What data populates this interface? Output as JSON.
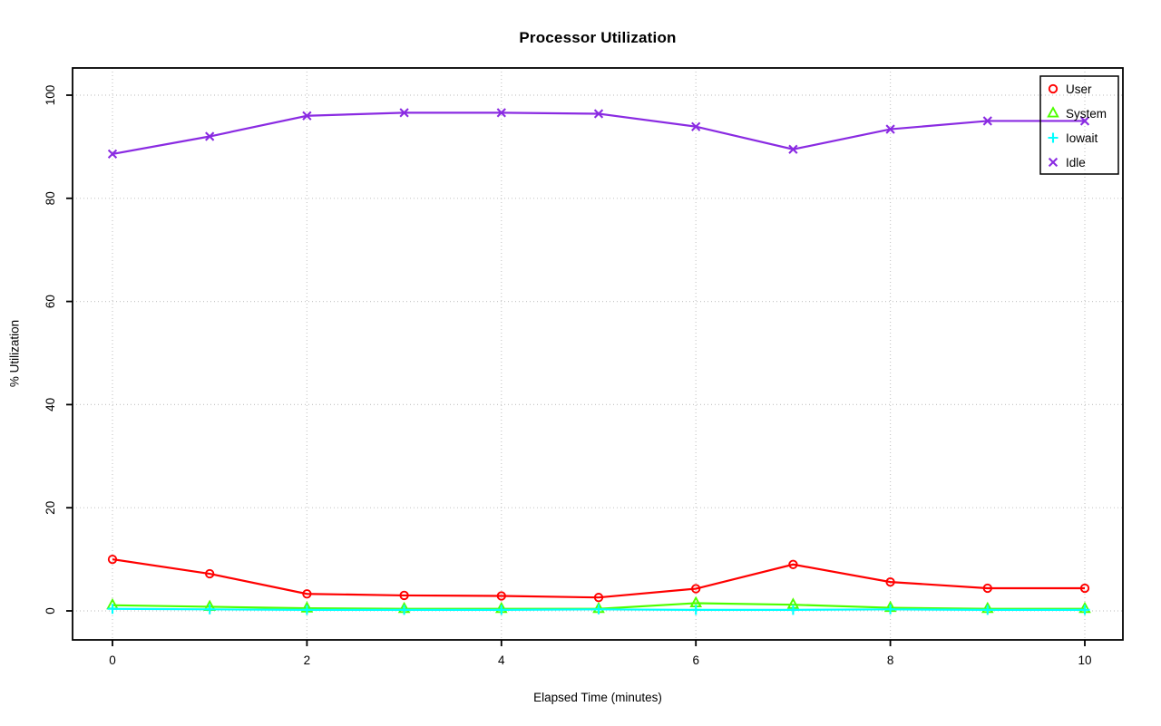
{
  "chart_data": {
    "type": "line",
    "title": "Processor Utilization",
    "xlabel": "Elapsed Time (minutes)",
    "ylabel": "% Utilization",
    "x": [
      0,
      1,
      2,
      3,
      4,
      5,
      6,
      7,
      8,
      9,
      10
    ],
    "series": [
      {
        "name": "User",
        "marker": "circle",
        "color": "#ff0000",
        "values": [
          10.0,
          7.2,
          3.3,
          3.0,
          2.9,
          2.6,
          4.3,
          9.0,
          5.6,
          4.4,
          4.4
        ]
      },
      {
        "name": "System",
        "marker": "triangle",
        "color": "#4dff00",
        "values": [
          1.1,
          0.8,
          0.5,
          0.4,
          0.4,
          0.4,
          1.5,
          1.2,
          0.6,
          0.4,
          0.4
        ]
      },
      {
        "name": "Iowait",
        "marker": "plus",
        "color": "#00ffff",
        "values": [
          0.4,
          0.3,
          0.2,
          0.2,
          0.2,
          0.3,
          0.2,
          0.2,
          0.3,
          0.2,
          0.2
        ]
      },
      {
        "name": "Idle",
        "marker": "x",
        "color": "#8a2be2",
        "values": [
          88.6,
          92.0,
          96.0,
          96.6,
          96.6,
          96.4,
          93.9,
          89.5,
          93.4,
          95.0,
          95.0
        ]
      }
    ],
    "xlim": [
      0,
      10
    ],
    "ylim": [
      0,
      100
    ],
    "xticks": [
      0,
      2,
      4,
      6,
      8,
      10
    ],
    "yticks": [
      0,
      20,
      40,
      60,
      80,
      100
    ],
    "grid": true,
    "grid_color": "#c8c8c8",
    "frame_color": "#000000",
    "legend_position": "top-right",
    "legend_labels": [
      "User",
      "System",
      "Iowait",
      "Idle"
    ]
  }
}
